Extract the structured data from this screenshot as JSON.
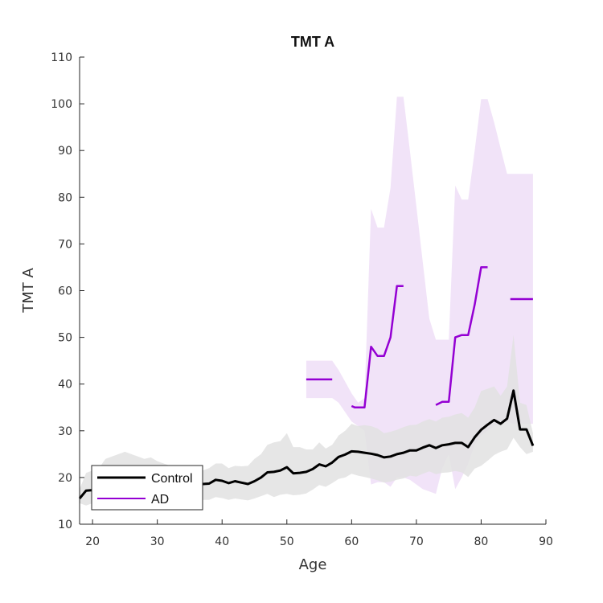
{
  "chart_data": {
    "type": "line",
    "title": "TMT A",
    "xlabel": "Age",
    "ylabel": "TMT A",
    "xlim": [
      18,
      90
    ],
    "ylim": [
      10,
      110
    ],
    "xticks": [
      20,
      30,
      40,
      50,
      60,
      70,
      80,
      90
    ],
    "yticks": [
      10,
      20,
      30,
      40,
      50,
      60,
      70,
      80,
      90,
      100,
      110
    ],
    "grid": false,
    "legend_position": "bottom-left",
    "series": [
      {
        "name": "Control",
        "color": "#000000",
        "band_color": "#e2e2e2",
        "x": [
          18,
          19,
          20,
          21,
          22,
          23,
          24,
          25,
          26,
          27,
          28,
          29,
          30,
          31,
          32,
          33,
          34,
          35,
          36,
          37,
          38,
          39,
          40,
          41,
          42,
          43,
          44,
          45,
          46,
          47,
          48,
          49,
          50,
          51,
          52,
          53,
          54,
          55,
          56,
          57,
          58,
          59,
          60,
          61,
          62,
          63,
          64,
          65,
          66,
          67,
          68,
          69,
          70,
          71,
          72,
          73,
          74,
          75,
          76,
          77,
          78,
          79,
          80,
          81,
          82,
          83,
          84,
          85,
          86,
          87,
          88
        ],
        "y": [
          15.5,
          17.2,
          17.3,
          17.6,
          17.7,
          18.0,
          18.2,
          18.3,
          18.3,
          18.5,
          18.6,
          18.5,
          18.5,
          18.5,
          18.3,
          18.2,
          18.3,
          18.2,
          18.4,
          18.6,
          18.7,
          19.5,
          19.3,
          18.8,
          19.2,
          18.9,
          18.6,
          19.2,
          20.0,
          21.1,
          21.2,
          21.5,
          22.2,
          20.9,
          21.0,
          21.2,
          21.8,
          22.8,
          22.4,
          23.2,
          24.4,
          24.9,
          25.6,
          25.5,
          25.3,
          25.1,
          24.8,
          24.3,
          24.5,
          25.0,
          25.3,
          25.8,
          25.8,
          26.4,
          26.9,
          26.3,
          26.9,
          27.1,
          27.4,
          27.4,
          26.5,
          28.6,
          30.2,
          31.3,
          32.3,
          31.5,
          32.6,
          38.6,
          30.3,
          30.3,
          26.8
        ],
        "lower": [
          14.5,
          14.0,
          14.5,
          14.8,
          14.6,
          14.8,
          15.0,
          15.1,
          15.0,
          15.2,
          15.3,
          15.2,
          15.2,
          15.2,
          15.0,
          14.9,
          15.0,
          14.9,
          15.1,
          15.2,
          15.2,
          15.8,
          15.6,
          15.2,
          15.5,
          15.3,
          15.1,
          15.5,
          16.0,
          16.5,
          15.8,
          16.3,
          16.5,
          16.2,
          16.3,
          16.6,
          17.4,
          18.4,
          18.0,
          18.8,
          19.7,
          20.0,
          20.8,
          20.4,
          20.1,
          19.8,
          19.4,
          18.9,
          19.1,
          19.5,
          19.8,
          20.4,
          20.2,
          20.8,
          21.3,
          20.7,
          21.0,
          21.1,
          21.4,
          21.1,
          20.1,
          21.9,
          22.5,
          23.6,
          24.8,
          25.5,
          26.0,
          28.5,
          26.5,
          25.0,
          25.5
        ],
        "upper": [
          17.5,
          21.0,
          21.5,
          22.0,
          24.0,
          24.5,
          25.0,
          25.5,
          25.0,
          24.5,
          24.0,
          24.3,
          23.5,
          23.0,
          22.5,
          22.0,
          22.2,
          22.0,
          22.0,
          21.5,
          22.0,
          23.0,
          23.0,
          22.0,
          22.5,
          22.4,
          22.5,
          24.0,
          25.0,
          27.0,
          27.5,
          27.8,
          29.5,
          26.5,
          26.5,
          26.0,
          26.0,
          27.5,
          26.2,
          27.0,
          29.0,
          30.0,
          31.5,
          31.0,
          31.2,
          31.0,
          30.5,
          29.5,
          29.8,
          30.2,
          30.8,
          31.2,
          31.3,
          32.0,
          32.5,
          32.0,
          32.8,
          33.0,
          33.5,
          33.8,
          32.8,
          35.0,
          38.5,
          39.0,
          39.5,
          37.5,
          39.5,
          50.5,
          36.0,
          35.5,
          29.5
        ]
      },
      {
        "name": "AD",
        "color": "#9400d3",
        "band_color": "#f1e3f8",
        "segments": [
          {
            "x": [
              53,
              57
            ],
            "y": [
              41,
              41
            ]
          },
          {
            "x": [
              60,
              60.5,
              61,
              62,
              63,
              64,
              65,
              66,
              67,
              68
            ],
            "y": [
              35.3,
              35.0,
              35.0,
              35.0,
              48.0,
              46.0,
              46.0,
              50.0,
              61.0,
              61.0
            ]
          },
          {
            "x": [
              73,
              74,
              75,
              76,
              77,
              78,
              79,
              80,
              81
            ],
            "y": [
              35.5,
              36.2,
              36.2,
              50.0,
              50.5,
              50.5,
              57.0,
              65.0,
              65.0
            ]
          },
          {
            "x": [
              84.5,
              88
            ],
            "y": [
              58.2,
              58.2
            ]
          }
        ],
        "bands": [
          {
            "x": [
              53,
              57,
              58,
              59,
              60,
              61,
              62,
              63,
              64,
              65,
              66,
              67,
              68,
              69,
              70,
              71,
              72,
              73,
              74,
              75,
              76,
              77,
              78,
              79,
              80,
              81,
              82,
              83,
              84,
              85,
              86,
              87,
              88
            ],
            "lower": [
              37,
              37,
              36,
              34,
              32,
              31,
              30,
              18.5,
              19,
              19,
              18,
              20,
              20,
              19.5,
              18.5,
              17.5,
              17,
              16.5,
              22,
              25,
              17.5,
              20,
              23,
              27,
              29,
              30,
              31,
              31.5,
              32,
              31.5,
              31.5,
              31.5,
              31.5
            ],
            "upper": [
              45,
              45,
              43,
              40.5,
              38,
              36,
              37,
              77.5,
              73.5,
              73.5,
              82,
              101.5,
              101.5,
              90,
              78,
              66,
              54,
              49.5,
              49.5,
              49.5,
              82.5,
              79.5,
              79.5,
              90,
              101,
              101,
              96,
              90.5,
              85,
              85,
              85,
              85,
              85
            ]
          }
        ]
      }
    ]
  },
  "legend": {
    "items": [
      {
        "label": "Control",
        "color": "#000000"
      },
      {
        "label": "AD",
        "color": "#9400d3"
      }
    ]
  }
}
